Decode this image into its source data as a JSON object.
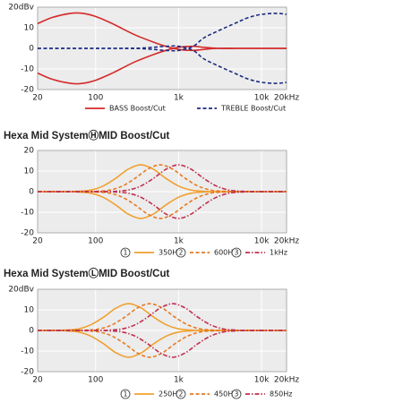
{
  "chart_data": [
    {
      "type": "line",
      "xscale": "log",
      "grid": true,
      "xlim": [
        20,
        20000
      ],
      "ylim": [
        -20,
        20
      ],
      "xticks": [
        20,
        100,
        {
          "value": 1000,
          "label": "1k"
        },
        {
          "value": 10000,
          "label": "10k"
        },
        {
          "value": 20000,
          "label": "20kHz"
        }
      ],
      "yticks": [
        {
          "value": 20,
          "label": "20dBv"
        },
        10,
        0,
        -10,
        -20
      ],
      "series": [
        {
          "name": "BASS Boost/Cut",
          "color": "#d42a2a",
          "dash": "solid",
          "x": [
            20,
            30,
            50,
            70,
            100,
            150,
            200,
            300,
            500,
            700,
            1000,
            1500,
            2000,
            3000,
            5000,
            10000,
            20000
          ],
          "values": [
            12,
            15,
            17,
            17,
            15.5,
            12.5,
            10,
            6.5,
            3,
            1,
            -0.5,
            -1,
            -0.5,
            0,
            0,
            0,
            0
          ],
          "cut": [
            -12,
            -15,
            -17,
            -17,
            -15.5,
            -12.5,
            -10,
            -6.5,
            -3,
            -1,
            0.5,
            1,
            0.5,
            0,
            0,
            0,
            0
          ]
        },
        {
          "name": "TREBLE Boost/Cut",
          "color": "#1c2a80",
          "dash": "dashed",
          "x": [
            20,
            50,
            100,
            200,
            300,
            500,
            700,
            1000,
            1500,
            2000,
            3000,
            5000,
            7000,
            10000,
            15000,
            20000
          ],
          "values": [
            0,
            0,
            0,
            0,
            0,
            -0.5,
            -1,
            -1,
            1,
            5,
            8.5,
            12.5,
            15,
            16.5,
            17,
            16.5
          ],
          "cut": [
            0,
            0,
            0,
            0,
            0,
            0.5,
            1,
            1,
            -1,
            -5,
            -8.5,
            -12.5,
            -15,
            -16.5,
            -17,
            -16.5
          ]
        }
      ]
    },
    {
      "type": "line",
      "title": "Hexa Mid SystemⒽMID Boost/Cut",
      "xscale": "log",
      "grid": true,
      "xlim": [
        20,
        20000
      ],
      "ylim": [
        -20,
        20
      ],
      "xticks": [
        20,
        100,
        {
          "value": 1000,
          "label": "1k"
        },
        {
          "value": 10000,
          "label": "10k"
        },
        {
          "value": 20000,
          "label": "20kHz"
        }
      ],
      "yticks": [
        20,
        10,
        0,
        -10,
        -20
      ],
      "series": [
        {
          "name": "350Hz",
          "badge": "1",
          "color": "#f0a030",
          "dash": "solid",
          "x": [
            20,
            44,
            62,
            88,
            124,
            175,
            247,
            350,
            495,
            700,
            990,
            1400,
            1980,
            2800,
            20000
          ],
          "values": [
            0,
            0,
            0.2,
            0.8,
            2.8,
            6.5,
            10.9,
            13,
            10.9,
            6.5,
            2.8,
            0.8,
            0.2,
            0,
            0
          ],
          "cut": [
            0,
            0,
            -0.2,
            -0.8,
            -2.8,
            -6.5,
            -10.9,
            -13,
            -10.9,
            -6.5,
            -2.8,
            -0.8,
            -0.2,
            0,
            0
          ]
        },
        {
          "name": "600Hz",
          "badge": "2",
          "color": "#e87a20",
          "dash": "dashed",
          "x": [
            20,
            75,
            106,
            150,
            212,
            300,
            424,
            600,
            849,
            1200,
            1697,
            2400,
            3394,
            4800,
            20000
          ],
          "values": [
            0,
            0,
            0.2,
            0.8,
            2.8,
            6.5,
            10.9,
            13,
            10.9,
            6.5,
            2.8,
            0.8,
            0.2,
            0,
            0
          ],
          "cut": [
            0,
            0,
            -0.2,
            -0.8,
            -2.8,
            -6.5,
            -10.9,
            -13,
            -10.9,
            -6.5,
            -2.8,
            -0.8,
            -0.2,
            0,
            0
          ]
        },
        {
          "name": "1kHz",
          "badge": "3",
          "color": "#c03050",
          "dash": "dashdot",
          "x": [
            20,
            125,
            177,
            250,
            354,
            500,
            707,
            1000,
            1414,
            2000,
            2828,
            4000,
            5657,
            8000,
            20000
          ],
          "values": [
            0,
            0,
            0.2,
            0.8,
            2.8,
            6.5,
            10.9,
            13,
            10.9,
            6.5,
            2.8,
            0.8,
            0.2,
            0,
            0
          ],
          "cut": [
            0,
            0,
            -0.2,
            -0.8,
            -2.8,
            -6.5,
            -10.9,
            -13,
            -10.9,
            -6.5,
            -2.8,
            -0.8,
            -0.2,
            0,
            0
          ]
        }
      ]
    },
    {
      "type": "line",
      "title": "Hexa Mid SystemⓁMID Boost/Cut",
      "xscale": "log",
      "grid": true,
      "xlim": [
        20,
        20000
      ],
      "ylim": [
        -20,
        20
      ],
      "xticks": [
        20,
        100,
        {
          "value": 1000,
          "label": "1k"
        },
        {
          "value": 10000,
          "label": "10k"
        },
        {
          "value": 20000,
          "label": "20kHz"
        }
      ],
      "yticks": [
        {
          "value": 20,
          "label": "20dBv"
        },
        10,
        0,
        -10,
        -20
      ],
      "series": [
        {
          "name": "250Hz",
          "badge": "1",
          "color": "#f0a030",
          "dash": "solid",
          "x": [
            20,
            31,
            44,
            63,
            88,
            125,
            177,
            250,
            354,
            500,
            707,
            1000,
            1414,
            2000,
            20000
          ],
          "values": [
            0,
            0,
            0.2,
            0.8,
            2.8,
            6.5,
            10.9,
            13,
            10.9,
            6.5,
            2.8,
            0.8,
            0.2,
            0,
            0
          ],
          "cut": [
            0,
            0,
            -0.2,
            -0.8,
            -2.8,
            -6.5,
            -10.9,
            -13,
            -10.9,
            -6.5,
            -2.8,
            -0.8,
            -0.2,
            0,
            0
          ]
        },
        {
          "name": "450Hz",
          "badge": "2",
          "color": "#e87a20",
          "dash": "dashed",
          "x": [
            20,
            56,
            80,
            113,
            159,
            225,
            318,
            450,
            636,
            900,
            1273,
            1800,
            2546,
            3600,
            20000
          ],
          "values": [
            0,
            0,
            0.2,
            0.8,
            2.8,
            6.5,
            10.9,
            13,
            10.9,
            6.5,
            2.8,
            0.8,
            0.2,
            0,
            0
          ],
          "cut": [
            0,
            0,
            -0.2,
            -0.8,
            -2.8,
            -6.5,
            -10.9,
            -13,
            -10.9,
            -6.5,
            -2.8,
            -0.8,
            -0.2,
            0,
            0
          ]
        },
        {
          "name": "850Hz",
          "badge": "3",
          "color": "#c03050",
          "dash": "dashdot",
          "x": [
            20,
            106,
            150,
            213,
            301,
            425,
            601,
            850,
            1202,
            1700,
            2404,
            3400,
            4808,
            6800,
            20000
          ],
          "values": [
            0,
            0,
            0.2,
            0.8,
            2.8,
            6.5,
            10.9,
            13,
            10.9,
            6.5,
            2.8,
            0.8,
            0.2,
            0,
            0
          ],
          "cut": [
            0,
            0,
            -0.2,
            -0.8,
            -2.8,
            -6.5,
            -10.9,
            -13,
            -10.9,
            -6.5,
            -2.8,
            -0.8,
            -0.2,
            0,
            0
          ]
        }
      ]
    }
  ]
}
